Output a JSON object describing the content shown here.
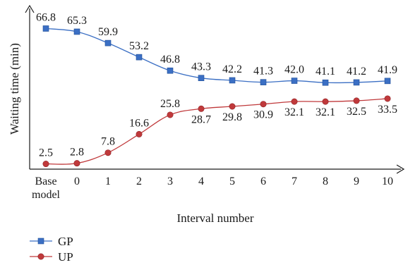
{
  "chart_data": {
    "type": "line",
    "categories": [
      "Base model",
      "0",
      "1",
      "2",
      "3",
      "4",
      "5",
      "6",
      "7",
      "8",
      "9",
      "10"
    ],
    "x_tick_lines": [
      [
        "Base",
        "model"
      ],
      [
        "0"
      ],
      [
        "1"
      ],
      [
        "2"
      ],
      [
        "3"
      ],
      [
        "4"
      ],
      [
        "5"
      ],
      [
        "6"
      ],
      [
        "7"
      ],
      [
        "8"
      ],
      [
        "9"
      ],
      [
        "10"
      ]
    ],
    "xlabel": "Interval number",
    "ylabel": "Waiting time (min)",
    "ylim": [
      0,
      75
    ],
    "grid": false,
    "legend_position": "bottom-left",
    "series": [
      {
        "name": "GP",
        "color": "#3b6fc4",
        "marker": "square",
        "label_position": "above",
        "values": [
          66.8,
          65.3,
          59.9,
          53.2,
          46.8,
          43.3,
          42.2,
          41.3,
          42.0,
          41.1,
          41.2,
          41.9
        ],
        "labels": [
          "66.8",
          "65.3",
          "59.9",
          "53.2",
          "46.8",
          "43.3",
          "42.2",
          "41.3",
          "42.0",
          "41.1",
          "41.2",
          "41.9"
        ]
      },
      {
        "name": "UP",
        "color": "#c0393b",
        "marker": "circle",
        "label_position": "mixed",
        "values": [
          2.5,
          2.8,
          7.8,
          16.6,
          25.8,
          28.7,
          29.8,
          30.9,
          32.1,
          32.1,
          32.5,
          33.5
        ],
        "labels": [
          "2.5",
          "2.8",
          "7.8",
          "16.6",
          "25.8",
          "28.7",
          "29.8",
          "30.9",
          "32.1",
          "32.1",
          "32.5",
          "33.5"
        ],
        "labels_above": [
          true,
          true,
          true,
          true,
          true,
          false,
          false,
          false,
          false,
          false,
          false,
          false
        ]
      }
    ]
  }
}
